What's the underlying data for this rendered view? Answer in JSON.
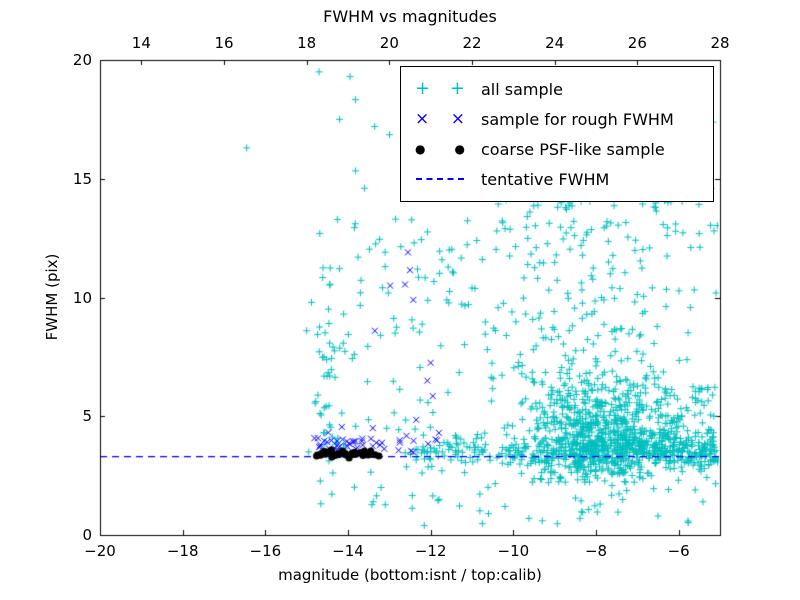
{
  "figure": {
    "title": "FWHM vs magnitudes",
    "xlabel": "magnitude (bottom:isnt / top:calib)",
    "ylabel": "FWHM (pix)"
  },
  "chart_data": {
    "type": "scatter",
    "title": "FWHM vs magnitudes",
    "xlabel": "magnitude (bottom:isnt / top:calib)",
    "ylabel": "FWHM (pix)",
    "seed": 42,
    "axes": {
      "x_bottom": {
        "range": [
          -20,
          -5
        ],
        "ticks": [
          -20,
          -18,
          -16,
          -14,
          -12,
          -10,
          -8,
          -6
        ],
        "tick_labels": [
          "−20",
          "−18",
          "−16",
          "−14",
          "−12",
          "−10",
          "−8",
          "−6"
        ]
      },
      "x_top": {
        "range": [
          13,
          28
        ],
        "ticks": [
          14,
          16,
          18,
          20,
          22,
          24,
          26,
          28
        ],
        "tick_labels": [
          "14",
          "16",
          "18",
          "20",
          "22",
          "24",
          "26",
          "28"
        ]
      },
      "y": {
        "range": [
          0,
          20
        ],
        "ticks": [
          0,
          5,
          10,
          15,
          20
        ],
        "tick_labels": [
          "0",
          "5",
          "10",
          "15",
          "20"
        ]
      }
    },
    "grid": false,
    "tentative_fwhm": 3.3,
    "tentative_fwhm_color": "#0000ff",
    "series": [
      {
        "name": "all sample",
        "marker": "+",
        "color": "#00bfbf",
        "clusters": [
          {
            "n": 680,
            "x": {
              "dist": "gauss",
              "mu": -8.0,
              "sigma": 1.0
            },
            "y": {
              "dist": "gauss",
              "mu": 4.3,
              "sigma": 1.15
            },
            "ymin": 2.2,
            "xmax": -5.05
          },
          {
            "n": 330,
            "x": {
              "dist": "uniform",
              "min": -8.6,
              "max": -5.05
            },
            "y": {
              "dist": "gauss",
              "mu": 3.55,
              "sigma": 0.38
            }
          },
          {
            "n": 130,
            "x": {
              "dist": "uniform",
              "min": -12.4,
              "max": -8.6
            },
            "y": {
              "dist": "gauss",
              "mu": 3.5,
              "sigma": 0.3
            }
          },
          {
            "n": 250,
            "x": {
              "dist": "gauss",
              "mu": -8.3,
              "sigma": 1.8
            },
            "y": {
              "dist": "uniform",
              "min": 5.5,
              "max": 14.2
            },
            "xmin": -12.5,
            "xmax": -5.05
          },
          {
            "n": 95,
            "x": {
              "dist": "uniform",
              "min": -14.9,
              "max": -11.2
            },
            "y": {
              "dist": "uniform",
              "min": 2.6,
              "max": 13.5
            }
          },
          {
            "n": 55,
            "x": {
              "dist": "uniform",
              "min": -14.3,
              "max": -5.1
            },
            "y": {
              "dist": "uniform",
              "min": 14.2,
              "max": 19.8
            }
          },
          {
            "n": 26,
            "x": {
              "dist": "gauss",
              "mu": -14.55,
              "sigma": 0.12
            },
            "y": {
              "dist": "uniform",
              "min": 3.0,
              "max": 9.0
            }
          },
          {
            "n": 42,
            "x": {
              "dist": "uniform",
              "min": -12.6,
              "max": -5.05
            },
            "y": {
              "dist": "uniform",
              "min": 0.4,
              "max": 2.8
            }
          },
          {
            "n": 8,
            "x": {
              "dist": "uniform",
              "min": -14.9,
              "max": -12.6
            },
            "y": {
              "dist": "uniform",
              "min": 1.2,
              "max": 2.9
            }
          },
          {
            "n": 70,
            "x": {
              "dist": "uniform",
              "min": -6.5,
              "max": -5.02
            },
            "y": {
              "dist": "uniform",
              "min": 2.8,
              "max": 6.3
            }
          }
        ],
        "points": [
          [
            -16.45,
            16.3
          ],
          [
            -14.7,
            19.5
          ],
          [
            -13.95,
            19.3
          ],
          [
            -13.6,
            14.6
          ],
          [
            -12.85,
            13.3
          ],
          [
            -12.2,
            14.9
          ],
          [
            -11.3,
            14.3
          ],
          [
            -5.45,
            14.2
          ],
          [
            -13.1,
            11.3
          ],
          [
            -13.7,
            10.2
          ],
          [
            -15.0,
            8.6
          ],
          [
            -14.95,
            3.5
          ],
          [
            -13.2,
            2.0
          ],
          [
            -11.8,
            1.5
          ],
          [
            -10.6,
            0.9
          ],
          [
            -9.3,
            0.6
          ],
          [
            -7.9,
            1.3
          ],
          [
            -6.5,
            0.8
          ],
          [
            -5.6,
            1.9
          ],
          [
            -12.4,
            12.3
          ],
          [
            -11.55,
            12.0
          ],
          [
            -11.0,
            10.4
          ],
          [
            -10.75,
            11.6
          ],
          [
            -10.2,
            12.9
          ],
          [
            -9.6,
            13.6
          ]
        ]
      },
      {
        "name": "sample for rough FWHM",
        "marker": "x",
        "color": "#0000ff",
        "clusters": [
          {
            "n": 46,
            "x": {
              "dist": "uniform",
              "min": -14.88,
              "max": -11.75
            },
            "y": {
              "dist": "gauss",
              "mu": 3.8,
              "sigma": 0.28
            },
            "ymin": 3.35
          }
        ],
        "points": [
          [
            -12.55,
            11.9
          ],
          [
            -12.5,
            11.15
          ],
          [
            -12.62,
            10.55
          ],
          [
            -12.42,
            9.9
          ],
          [
            -12.98,
            10.5
          ],
          [
            -13.35,
            8.6
          ],
          [
            -12.0,
            7.25
          ],
          [
            -12.08,
            6.5
          ],
          [
            -11.95,
            5.85
          ],
          [
            -12.35,
            4.85
          ],
          [
            -14.15,
            4.55
          ],
          [
            -13.4,
            4.5
          ],
          [
            -11.8,
            4.3
          ]
        ]
      },
      {
        "name": "coarse PSF-like sample",
        "marker": "o",
        "color": "#000000",
        "clusters": [
          {
            "n": 40,
            "x": {
              "dist": "uniform",
              "min": -14.78,
              "max": -13.1
            },
            "y": {
              "dist": "gauss",
              "mu": 3.4,
              "sigma": 0.07
            }
          }
        ],
        "points": []
      }
    ],
    "legend": {
      "position": "upper right",
      "entries": [
        {
          "label": "all sample",
          "marker": "+",
          "color": "#00bfbf"
        },
        {
          "label": "sample for rough FWHM",
          "marker": "x",
          "color": "#0000ff"
        },
        {
          "label": "coarse PSF-like sample",
          "marker": "o",
          "color": "#000000"
        },
        {
          "label": "tentative FWHM",
          "marker": "dashed-line",
          "color": "#0000ff"
        }
      ]
    }
  }
}
